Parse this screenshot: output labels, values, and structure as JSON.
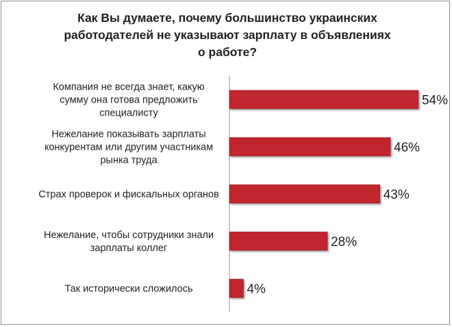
{
  "chart_data": {
    "type": "bar",
    "orientation": "horizontal",
    "title": "Как Вы думаете, почему большинство украинских работодателей не указывают зарплату в объявлениях о работе?",
    "title_lines": [
      "Как Вы думаете, почему большинство украинских",
      "работодателей не указывают зарплату в объявлениях",
      "о работе?"
    ],
    "categories": [
      [
        "Компания не всегда знает, какую",
        "сумму она готова предложить",
        "специалисту"
      ],
      [
        "Нежелание показывать зарплаты",
        "конкурентам или другим участникам",
        "рынка труда"
      ],
      [
        "Страх проверок и фискальных органов"
      ],
      [
        "Нежелание, чтобы сотрудники знали",
        "зарплаты коллег"
      ],
      [
        "Так исторически сложилось"
      ]
    ],
    "values": [
      54,
      46,
      43,
      28,
      4
    ],
    "value_labels": [
      "54%",
      "46%",
      "43%",
      "28%",
      "4%"
    ],
    "xlim": [
      0,
      100
    ],
    "grid": false,
    "legend": "none",
    "colors": {
      "bar": "#c0272d",
      "bar_edge": "#8e1a1f",
      "axis": "#8c8c8c"
    }
  }
}
